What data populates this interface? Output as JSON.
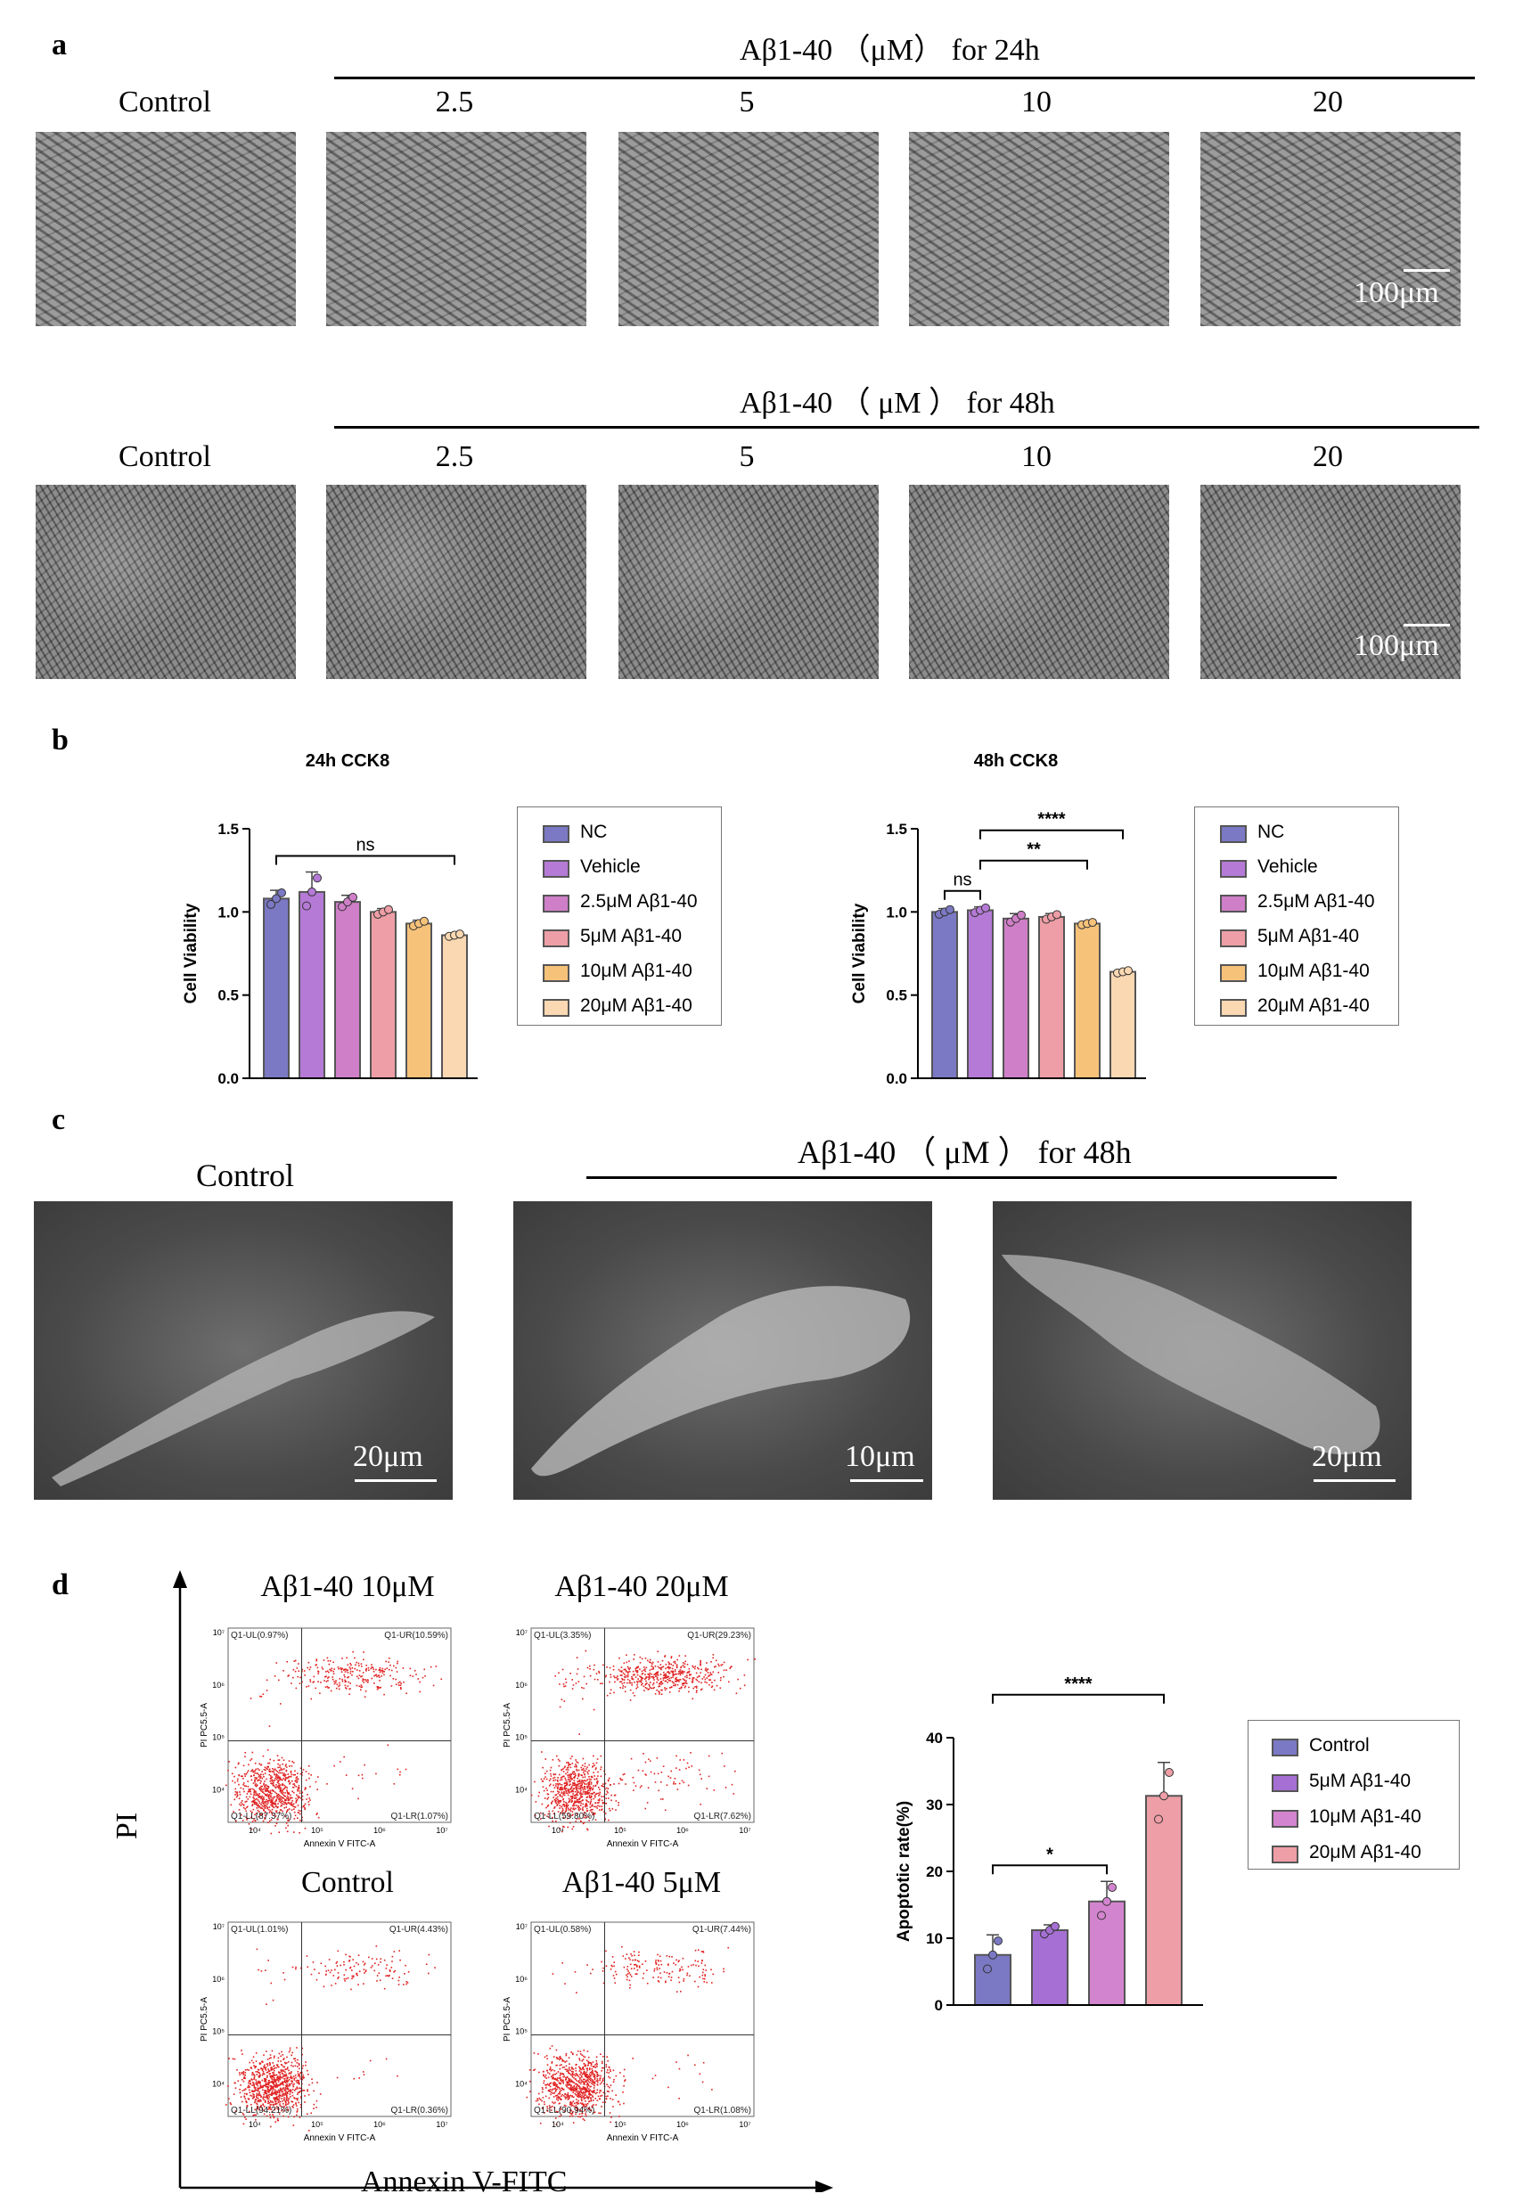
{
  "panel_a": {
    "letter": "a",
    "row1_header": "Aβ1-40 （μM） for 24h",
    "row2_header": "Aβ1-40 （ μM ） for 48h",
    "labels": [
      "Control",
      "2.5",
      "5",
      "10",
      "20"
    ],
    "scale": "100μm"
  },
  "panel_b": {
    "letter": "b",
    "legend": [
      "NC",
      "Vehicle",
      "2.5μM Aβ1-40",
      "5μM Aβ1-40",
      "10μM Aβ1-40",
      "20μM Aβ1-40"
    ],
    "colors": [
      "#7b78c4",
      "#b57ad6",
      "#cf7fc8",
      "#ee9ea6",
      "#f6c27a",
      "#f9d8b2"
    ]
  },
  "panel_c": {
    "letter": "c",
    "control_label": "Control",
    "header": "Aβ1-40 （ μM ） for 48h",
    "scales": [
      "20μm",
      "10μm",
      "20μm"
    ]
  },
  "panel_d": {
    "letter": "d",
    "y_axis_label": "PI",
    "x_axis_label": "Annexin V-FITC",
    "plots": [
      {
        "title": "Aβ1-40 10μM",
        "ul": "Q1-UL(0.97%)",
        "ur": "Q1-UR(10.59%)",
        "ll": "Q1-LL(87.37%)",
        "lr": "Q1-LR(1.07%)"
      },
      {
        "title": "Aβ1-40 20μM",
        "ul": "Q1-UL(3.35%)",
        "ur": "Q1-UR(29.23%)",
        "ll": "Q1-LL(59.80%)",
        "lr": "Q1-LR(7.62%)"
      },
      {
        "title": "Control",
        "ul": "Q1-UL(1.01%)",
        "ur": "Q1-UR(4.43%)",
        "ll": "Q1-LL(94.21%)",
        "lr": "Q1-LR(0.36%)"
      },
      {
        "title": "Aβ1-40 5μM",
        "ul": "Q1-UL(0.58%)",
        "ur": "Q1-UR(7.44%)",
        "ll": "Q1-LL(90.94%)",
        "lr": "Q1-LR(1.08%)"
      }
    ],
    "flow_axis_x": "Annexin V FITC-A",
    "flow_axis_y": "PI PC5.5-A",
    "legend": [
      "Control",
      "5μM Aβ1-40",
      "10μM Aβ1-40",
      "20μM Aβ1-40"
    ],
    "colors": [
      "#7b78c4",
      "#a56fd3",
      "#d384cf",
      "#ee9ea6"
    ]
  },
  "chart_data": [
    {
      "type": "bar",
      "title": "24h CCK8",
      "ylabel": "Cell Viability",
      "xlabel": "",
      "ylim": [
        0,
        1.5
      ],
      "yticks": [
        "0.0",
        "0.5",
        "1.0",
        "1.5"
      ],
      "categories": [
        "NC",
        "Vehicle",
        "2.5μM Aβ1-40",
        "5μM Aβ1-40",
        "10μM Aβ1-40",
        "20μM Aβ1-40"
      ],
      "values": [
        1.08,
        1.12,
        1.06,
        1.0,
        0.93,
        0.86
      ],
      "errors": [
        0.05,
        0.12,
        0.04,
        0.02,
        0.02,
        0.01
      ],
      "significance": [
        {
          "from": 0,
          "to": 5,
          "label": "ns"
        }
      ],
      "legend_position": "right"
    },
    {
      "type": "bar",
      "title": "48h CCK8",
      "ylabel": "Cell Viability",
      "xlabel": "",
      "ylim": [
        0,
        1.5
      ],
      "yticks": [
        "0.0",
        "0.5",
        "1.0",
        "1.5"
      ],
      "categories": [
        "NC",
        "Vehicle",
        "2.5μM Aβ1-40",
        "5μM Aβ1-40",
        "10μM Aβ1-40",
        "20μM Aβ1-40"
      ],
      "values": [
        1.0,
        1.01,
        0.96,
        0.97,
        0.93,
        0.64
      ],
      "errors": [
        0.02,
        0.02,
        0.03,
        0.02,
        0.01,
        0.01
      ],
      "significance": [
        {
          "from": 0,
          "to": 1,
          "label": "ns"
        },
        {
          "from": 1,
          "to": 4,
          "label": "**"
        },
        {
          "from": 1,
          "to": 5,
          "label": "****"
        }
      ],
      "legend_position": "right"
    },
    {
      "type": "bar",
      "title": "",
      "ylabel": "Apoptotic rate(%)",
      "xlabel": "",
      "ylim": [
        0,
        40
      ],
      "yticks": [
        "0",
        "10",
        "20",
        "30",
        "40"
      ],
      "categories": [
        "Control",
        "5μM Aβ1-40",
        "10μM Aβ1-40",
        "20μM Aβ1-40"
      ],
      "values": [
        7.5,
        11.2,
        15.5,
        31.3
      ],
      "errors": [
        3.0,
        0.8,
        3.0,
        5.0
      ],
      "significance": [
        {
          "from": 0,
          "to": 2,
          "label": "*"
        },
        {
          "from": 0,
          "to": 3,
          "label": "****"
        }
      ],
      "legend_position": "right"
    }
  ]
}
